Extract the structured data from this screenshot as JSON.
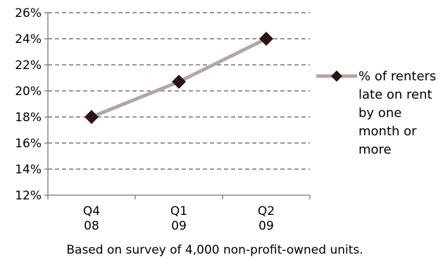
{
  "chart_data": {
    "type": "line",
    "categories": [
      [
        "Q4",
        "08"
      ],
      [
        "Q1",
        "09"
      ],
      [
        "Q2",
        "09"
      ]
    ],
    "series": [
      {
        "name": "% of renters late on rent by one month or more",
        "legend_lines": [
          "% of renters",
          "late on rent",
          "by one",
          "month or",
          "more"
        ],
        "values": [
          18.0,
          20.7,
          24.0
        ],
        "line_color": "#b5a6a6",
        "marker_color": "#2a1414",
        "marker": "diamond"
      }
    ],
    "y_ticks": [
      "12%",
      "14%",
      "16%",
      "18%",
      "20%",
      "22%",
      "24%",
      "26%"
    ],
    "ylim": [
      12,
      26
    ],
    "y_tick_step": 2,
    "gridlines": "horizontal-dashed",
    "legend_position": "right",
    "caption": "Based on survey of 4,000 non-profit-owned units."
  }
}
